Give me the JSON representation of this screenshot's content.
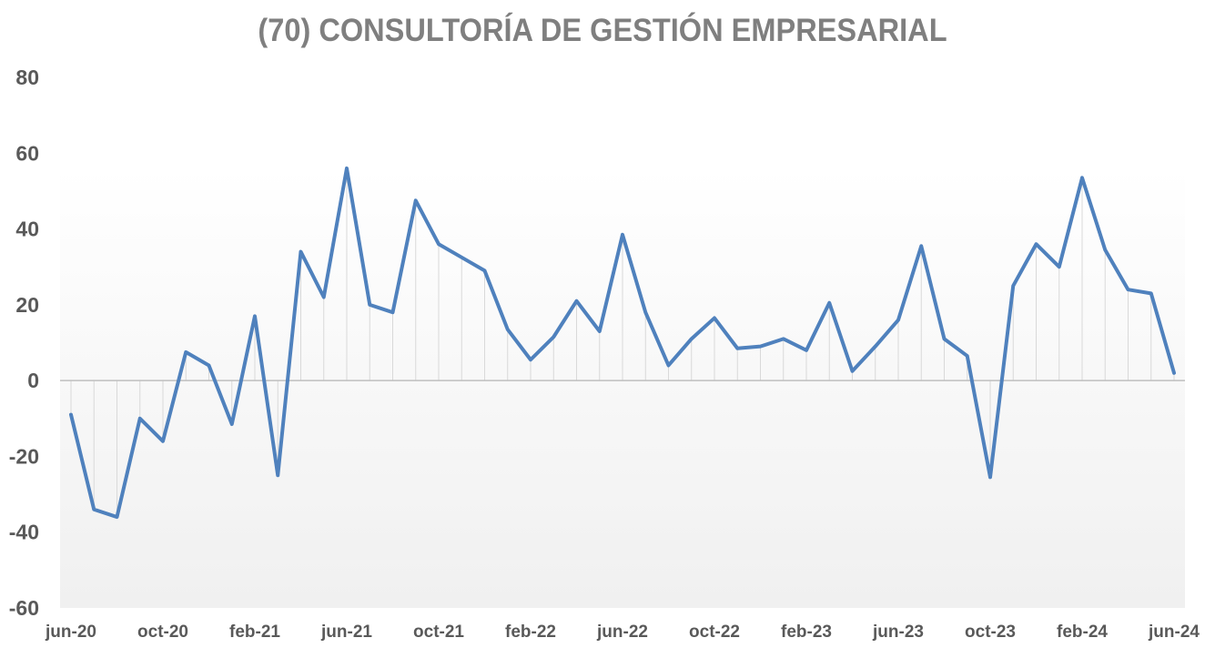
{
  "chart_data": {
    "type": "area",
    "title": "(70) CONSULTORÍA DE GESTIÓN EMPRESARIAL",
    "xlabel": "",
    "ylabel": "",
    "ylim": [
      -60,
      80
    ],
    "yticks": [
      80,
      60,
      40,
      20,
      0,
      -20,
      -40,
      -60
    ],
    "grid": "vertical drop lines",
    "legend": "none",
    "x_tick_labels": [
      "jun-20",
      "oct-20",
      "feb-21",
      "jun-21",
      "oct-21",
      "feb-22",
      "jun-22",
      "oct-22",
      "feb-23",
      "jun-23",
      "oct-23",
      "feb-24",
      "jun-24"
    ],
    "x_tick_every": 4,
    "x": [
      "jun-20",
      "jul-20",
      "ago-20",
      "sep-20",
      "oct-20",
      "nov-20",
      "dic-20",
      "ene-21",
      "feb-21",
      "mar-21",
      "abr-21",
      "may-21",
      "jun-21",
      "jul-21",
      "ago-21",
      "sep-21",
      "oct-21",
      "nov-21",
      "dic-21",
      "ene-22",
      "feb-22",
      "mar-22",
      "abr-22",
      "may-22",
      "jun-22",
      "jul-22",
      "ago-22",
      "sep-22",
      "oct-22",
      "nov-22",
      "dic-22",
      "ene-23",
      "feb-23",
      "mar-23",
      "abr-23",
      "may-23",
      "jun-23",
      "jul-23",
      "ago-23",
      "sep-23",
      "oct-23",
      "nov-23",
      "dic-23",
      "ene-24",
      "feb-24",
      "mar-24",
      "abr-24",
      "may-24",
      "jun-24"
    ],
    "series": [
      {
        "values": [
          -9,
          -34,
          -36,
          -10,
          -16,
          7.5,
          4,
          -11.5,
          17,
          -25,
          34,
          22,
          56,
          20,
          18,
          47.5,
          36,
          32.5,
          29,
          13.5,
          5.5,
          11.5,
          21,
          13,
          38.5,
          18,
          4,
          11,
          16.5,
          8.5,
          9,
          11,
          8,
          20.5,
          2.5,
          9,
          16,
          35.5,
          11,
          6.5,
          -25.5,
          25,
          36,
          30,
          53.5,
          34.5,
          24,
          23,
          2
        ],
        "color": "#4f81bd"
      }
    ],
    "colors": {
      "line": "#4f81bd",
      "dropline": "#d9d9d9",
      "zero_line": "#bfbfbf",
      "plot_top": "#ffffff",
      "plot_bottom": "#f0f0f0",
      "text": "#595959",
      "title": "#7f7f7f"
    }
  }
}
